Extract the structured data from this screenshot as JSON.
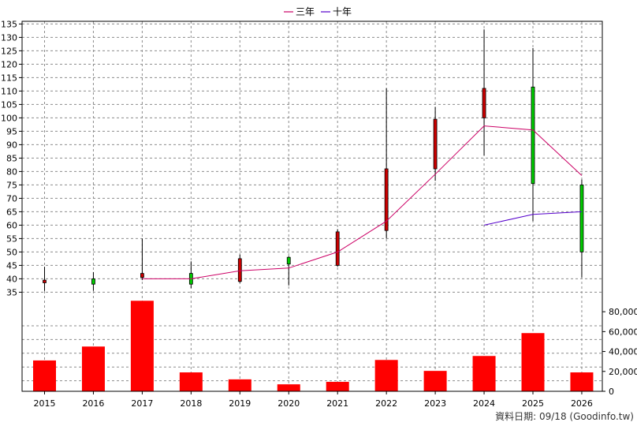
{
  "chart_data": {
    "type": "candlestick",
    "legend": [
      {
        "name": "三年",
        "color": "#cc0066"
      },
      {
        "name": "十年",
        "color": "#5500cc"
      }
    ],
    "legend_position": "top-center",
    "years": [
      "2015",
      "2016",
      "2017",
      "2018",
      "2019",
      "2020",
      "2021",
      "2022",
      "2023",
      "2024",
      "2025",
      "2026"
    ],
    "price_axis": {
      "ylim": [
        31,
        136
      ],
      "ticks": [
        35,
        40,
        45,
        50,
        55,
        60,
        65,
        70,
        75,
        80,
        85,
        90,
        95,
        100,
        105,
        110,
        115,
        120,
        125,
        130,
        135
      ]
    },
    "candles": [
      {
        "year": "2015",
        "open": 38.5,
        "close": 39.5,
        "high": 44.5,
        "low": 35.5
      },
      {
        "year": "2016",
        "open": 40,
        "close": 38,
        "high": 42.5,
        "low": 35.5
      },
      {
        "year": "2017",
        "open": 40.5,
        "close": 42,
        "high": 55,
        "low": 39.5
      },
      {
        "year": "2018",
        "open": 42,
        "close": 38,
        "high": 46.5,
        "low": 36.5
      },
      {
        "year": "2019",
        "open": 39,
        "close": 47.5,
        "high": 49,
        "low": 38.5
      },
      {
        "year": "2020",
        "open": 48,
        "close": 45.5,
        "high": 48.5,
        "low": 37.5
      },
      {
        "year": "2021",
        "open": 45,
        "close": 57.5,
        "high": 58.5,
        "low": 44.5
      },
      {
        "year": "2022",
        "open": 58,
        "close": 81,
        "high": 111,
        "low": 55
      },
      {
        "year": "2023",
        "open": 81,
        "close": 99.5,
        "high": 104,
        "low": 76.5
      },
      {
        "year": "2024",
        "open": 100,
        "close": 111,
        "high": 133,
        "low": 86
      },
      {
        "year": "2025",
        "open": 111.5,
        "close": 75.5,
        "high": 126,
        "low": 61.5
      },
      {
        "year": "2026",
        "open": 75,
        "close": 50,
        "high": 77,
        "low": 40.5
      }
    ],
    "series": [
      {
        "name": "三年",
        "color": "#cc0066",
        "points": [
          [
            "2017",
            40
          ],
          [
            "2018",
            40
          ],
          [
            "2019",
            43
          ],
          [
            "2020",
            44
          ],
          [
            "2021",
            50
          ],
          [
            "2022",
            61.5
          ],
          [
            "2023",
            79
          ],
          [
            "2024",
            97
          ],
          [
            "2025",
            95.5
          ],
          [
            "2026",
            78.5
          ]
        ]
      },
      {
        "name": "十年",
        "color": "#5500cc",
        "points": [
          [
            "2024",
            60
          ],
          [
            "2025",
            64
          ],
          [
            "2026",
            65
          ]
        ]
      }
    ],
    "volume_axis": {
      "ylim": [
        0,
        92000
      ],
      "ticks": [
        0,
        20000,
        40000,
        60000,
        80000
      ],
      "tick_labels": [
        "0",
        "20,000",
        "40,000",
        "60,000",
        "80,000"
      ]
    },
    "volume": [
      {
        "year": "2015",
        "value": 31000
      },
      {
        "year": "2016",
        "value": 45000
      },
      {
        "year": "2017",
        "value": 91000
      },
      {
        "year": "2018",
        "value": 19000
      },
      {
        "year": "2019",
        "value": 12000
      },
      {
        "year": "2020",
        "value": 7000
      },
      {
        "year": "2021",
        "value": 9500
      },
      {
        "year": "2022",
        "value": 31500
      },
      {
        "year": "2023",
        "value": 20500
      },
      {
        "year": "2024",
        "value": 35500
      },
      {
        "year": "2025",
        "value": 58500
      },
      {
        "year": "2026",
        "value": 19000
      }
    ],
    "colors": {
      "up": "#cc0000",
      "down": "#00cc00",
      "volume": "#ff0000",
      "wick": "#000000"
    },
    "grid": true
  },
  "footer": "資料日期: 09/18 (Goodinfo.tw)"
}
